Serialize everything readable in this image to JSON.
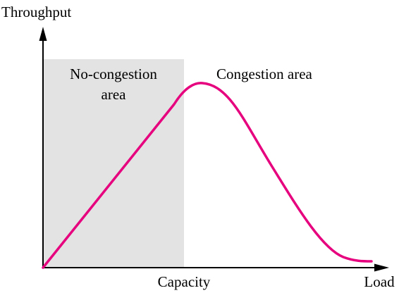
{
  "diagram": {
    "y_axis_label": "Throughput",
    "x_axis_label": "Load",
    "capacity_label": "Capacity",
    "no_congestion_label_line1": "No-congestion",
    "no_congestion_label_line2": "area",
    "congestion_label": "Congestion area"
  },
  "colors": {
    "curve": "#e6007e",
    "no_congestion_region": "#e3e3e3",
    "axes": "#000000"
  }
}
